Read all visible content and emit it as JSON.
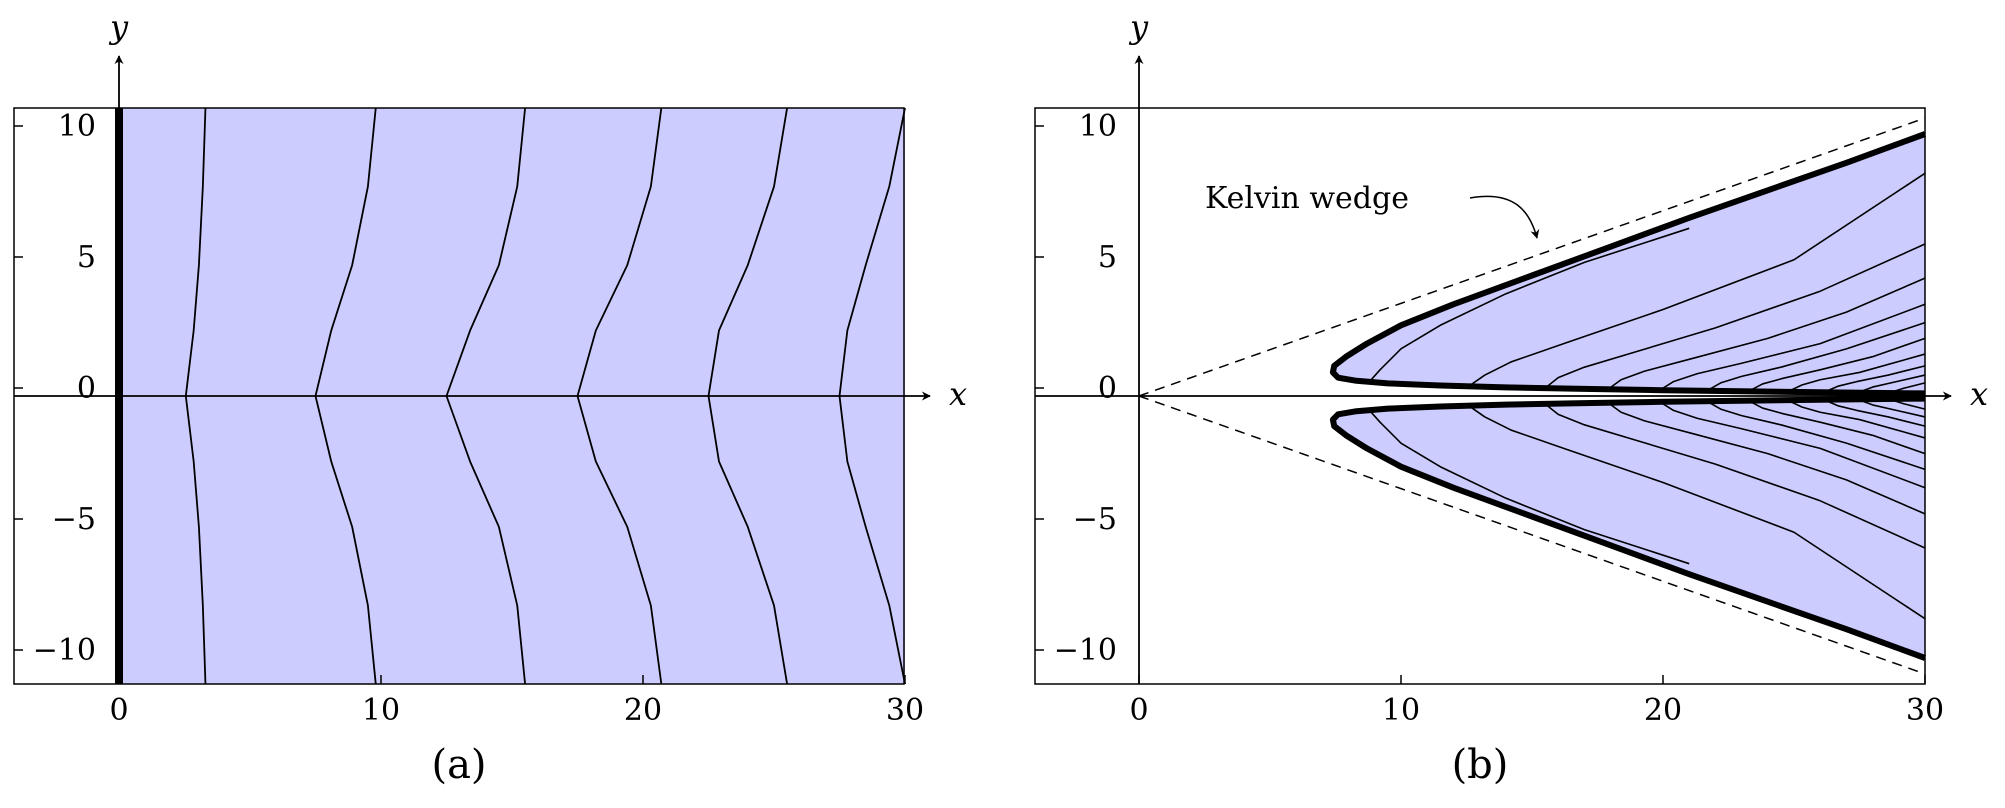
{
  "chart_data": [
    {
      "panel": "(a)",
      "type": "line",
      "xlabel": "x",
      "ylabel": "y",
      "xlim": [
        -4,
        30
      ],
      "ylim": [
        -11,
        11
      ],
      "x_ticks": [
        "0",
        "10",
        "20",
        "30"
      ],
      "y_ticks": [
        "−10",
        "−5",
        "0",
        "5",
        "10"
      ],
      "fill_color": "#ccccff",
      "fill_region": {
        "x": [
          0,
          30
        ],
        "y": [
          -11,
          11
        ]
      },
      "thick_line_x": 0,
      "series": [
        {
          "x": [
            3.3,
            3.2,
            3.05,
            2.85,
            2.55,
            2.85,
            3.05,
            3.2,
            3.3
          ],
          "y": [
            -11,
            -8,
            -5,
            -2.5,
            0,
            2.5,
            5,
            8,
            11
          ]
        },
        {
          "x": [
            9.8,
            9.5,
            8.9,
            8.1,
            7.5,
            8.1,
            8.9,
            9.5,
            9.8
          ],
          "y": [
            -11,
            -8,
            -5,
            -2.5,
            0,
            2.5,
            5,
            8,
            11
          ]
        },
        {
          "x": [
            15.5,
            15.2,
            14.5,
            13.4,
            12.5,
            13.4,
            14.5,
            15.2,
            15.5
          ],
          "y": [
            -11,
            -8,
            -5,
            -2.5,
            0,
            2.5,
            5,
            8,
            11
          ]
        },
        {
          "x": [
            20.7,
            20.3,
            19.4,
            18.2,
            17.5,
            18.2,
            19.4,
            20.3,
            20.7
          ],
          "y": [
            -11,
            -8,
            -5,
            -2.5,
            0,
            2.5,
            5,
            8,
            11
          ]
        },
        {
          "x": [
            25.5,
            25.0,
            24.0,
            22.9,
            22.5,
            22.9,
            24.0,
            25.0,
            25.5
          ],
          "y": [
            -11,
            -8,
            -5,
            -2.5,
            0,
            2.5,
            5,
            8,
            11
          ]
        },
        {
          "x": [
            30.0,
            29.4,
            28.5,
            27.8,
            27.5,
            27.8,
            28.5,
            29.4,
            30.0
          ],
          "y": [
            -11,
            -8,
            -5,
            -2.5,
            0,
            2.5,
            5,
            8,
            11
          ]
        }
      ]
    },
    {
      "panel": "(b)",
      "type": "line",
      "xlabel": "x",
      "ylabel": "y",
      "xlim": [
        -4,
        30
      ],
      "ylim": [
        -11,
        11
      ],
      "x_ticks": [
        "0",
        "10",
        "20",
        "30"
      ],
      "y_ticks": [
        "−10",
        "−5",
        "0",
        "5",
        "10"
      ],
      "fill_color": "#ccccff",
      "annotation": "Kelvin wedge",
      "wedge_slope": 0.3536,
      "boundary": {
        "x": [
          30,
          27,
          24,
          21,
          18,
          15,
          12,
          10,
          8.7,
          7.9,
          7.45,
          7.4,
          7.6,
          8.3,
          9.5,
          11.5,
          14,
          17,
          20,
          23,
          26,
          30
        ],
        "y": [
          10,
          8.9,
          7.85,
          6.8,
          5.7,
          4.6,
          3.5,
          2.7,
          2.0,
          1.5,
          1.15,
          0.9,
          0.7,
          0.58,
          0.48,
          0.4,
          0.33,
          0.27,
          0.22,
          0.18,
          0.14,
          0.1
        ]
      },
      "series": [
        {
          "x": [
            8.8,
            9.2,
            10.0,
            11.5,
            14,
            17,
            21
          ],
          "y": [
            0.55,
            1.0,
            1.8,
            2.7,
            3.9,
            5.1,
            6.4
          ]
        },
        {
          "x": [
            12.7,
            13.2,
            14.2,
            16.5,
            20,
            25,
            30
          ],
          "y": [
            0.45,
            0.8,
            1.3,
            2.1,
            3.3,
            5.2,
            8.5
          ]
        },
        {
          "x": [
            15.6,
            16.0,
            17.0,
            19,
            22,
            26,
            30
          ],
          "y": [
            0.38,
            0.7,
            1.1,
            1.7,
            2.6,
            4.0,
            5.8
          ]
        },
        {
          "x": [
            18.0,
            18.4,
            19.3,
            21,
            24,
            27,
            30
          ],
          "y": [
            0.33,
            0.62,
            0.95,
            1.4,
            2.2,
            3.2,
            4.5
          ]
        },
        {
          "x": [
            20.0,
            20.4,
            21.3,
            23,
            26,
            30
          ],
          "y": [
            0.3,
            0.55,
            0.85,
            1.25,
            2.0,
            3.5
          ]
        },
        {
          "x": [
            21.8,
            22.2,
            23.0,
            24.5,
            27,
            30
          ],
          "y": [
            0.27,
            0.5,
            0.75,
            1.1,
            1.8,
            2.8
          ]
        },
        {
          "x": [
            23.4,
            23.8,
            24.6,
            26,
            28,
            30
          ],
          "y": [
            0.25,
            0.46,
            0.68,
            1.0,
            1.5,
            2.2
          ]
        },
        {
          "x": [
            24.9,
            25.3,
            26,
            27.5,
            30
          ],
          "y": [
            0.23,
            0.42,
            0.62,
            0.9,
            1.6
          ]
        },
        {
          "x": [
            26.3,
            26.7,
            27.4,
            28.6,
            30
          ],
          "y": [
            0.21,
            0.38,
            0.55,
            0.8,
            1.15
          ]
        },
        {
          "x": [
            27.6,
            28.0,
            28.7,
            30
          ],
          "y": [
            0.19,
            0.34,
            0.5,
            0.8
          ]
        },
        {
          "x": [
            28.8,
            29.2,
            30
          ],
          "y": [
            0.17,
            0.3,
            0.5
          ]
        }
      ]
    }
  ]
}
